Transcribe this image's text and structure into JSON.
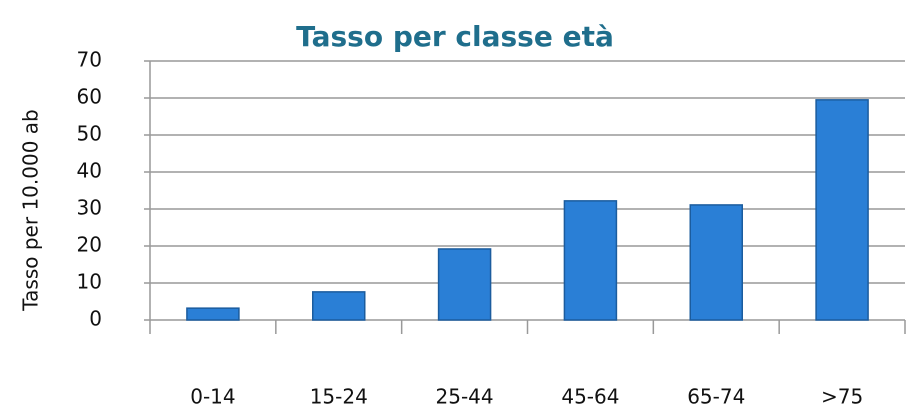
{
  "chart_data": {
    "type": "bar",
    "title": "Tasso per classe età",
    "y_label": "Tasso per 10.000 ab",
    "categories": [
      "0-14",
      "15-24",
      "25-44",
      "45-64",
      "65-74",
      ">75"
    ],
    "values": [
      3.2,
      7.6,
      19.2,
      32.2,
      31.1,
      59.5
    ],
    "color": "#2a7fd6",
    "stroke": "#1b5c9e",
    "ylim": [
      0,
      70
    ],
    "yticks": [
      0,
      10,
      20,
      30,
      40,
      50,
      60,
      70
    ],
    "grid": true
  }
}
